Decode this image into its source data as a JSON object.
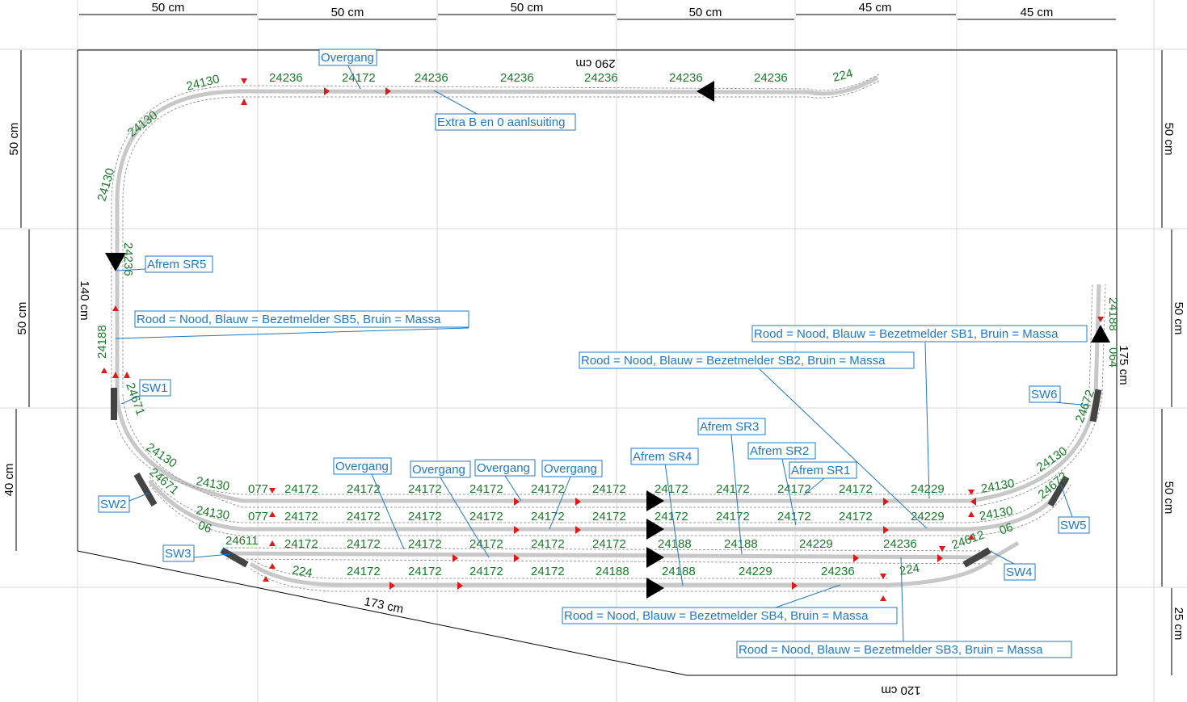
{
  "dimensions": {
    "top": [
      "50 cm",
      "50 cm",
      "50 cm",
      "50 cm",
      "45 cm",
      "45 cm"
    ],
    "left": [
      "50 cm",
      "50 cm",
      "40 cm"
    ],
    "right": [
      "50 cm",
      "50 cm",
      "50 cm",
      "25 cm"
    ],
    "board_top": "290 cm",
    "board_left": "140 cm",
    "board_right": "175 cm",
    "board_bottom": "120 cm",
    "board_diag": "173 cm"
  },
  "labels": {
    "overgang_top": "Overgang",
    "extra": "Extra B en 0 aanlsuiting",
    "afrem_sr5": "Afrem SR5",
    "sb5": "Rood = Nood, Blauw = Bezetmelder SB5, Bruin = Massa",
    "sw1": "SW1",
    "sw2": "SW2",
    "sw3": "SW3",
    "sw4": "SW4",
    "sw5": "SW5",
    "sw6": "SW6",
    "sb1": "Rood = Nood, Blauw = Bezetmelder SB1, Bruin = Massa",
    "sb2": "Rood = Nood, Blauw = Bezetmelder SB2, Bruin = Massa",
    "afrem_sr3": "Afrem SR3",
    "afrem_sr2": "Afrem SR2",
    "afrem_sr1": "Afrem SR1",
    "afrem_sr4": "Afrem SR4",
    "overgang_1": "Overgang",
    "overgang_2": "Overgang",
    "overgang_3": "Overgang",
    "overgang_4": "Overgang",
    "sb4": "Rood = Nood, Blauw = Bezetmelder SB4, Bruin = Massa",
    "sb3": "Rood = Nood, Blauw = Bezetmelder SB3, Bruin = Massa"
  },
  "track_numbers": {
    "top": [
      "24130",
      "24236",
      "24172",
      "24236",
      "24236",
      "24236",
      "24236",
      "24236",
      "224"
    ],
    "left": [
      "24130",
      "24130",
      "24236",
      "24188",
      "24671"
    ],
    "right": [
      "24188",
      "064",
      "24672"
    ],
    "row1": [
      "24130",
      "077",
      "24172",
      "24172",
      "24172",
      "24172",
      "24172",
      "24172",
      "24172",
      "24172",
      "24172",
      "24172",
      "24229",
      "24130"
    ],
    "row2": [
      "24130",
      "077",
      "24172",
      "24172",
      "24172",
      "24172",
      "24172",
      "24172",
      "24172",
      "24172",
      "24172",
      "24172",
      "24229",
      "24130"
    ],
    "row3": [
      "06",
      "24611",
      "24172",
      "24172",
      "24172",
      "24172",
      "24172",
      "24172",
      "24188",
      "24188",
      "24229",
      "24236",
      "24612",
      "06"
    ],
    "row4": [
      "224",
      "24172",
      "24172",
      "24172",
      "24172",
      "24188",
      "24188",
      "24229",
      "24236",
      "224"
    ],
    "curves": [
      "24130",
      "24671",
      "24130",
      "24672"
    ]
  },
  "colors": {
    "track_number": "#1a7a2a",
    "label": "#1e78c8",
    "signal": "#e01818",
    "arrow": "#000000"
  }
}
